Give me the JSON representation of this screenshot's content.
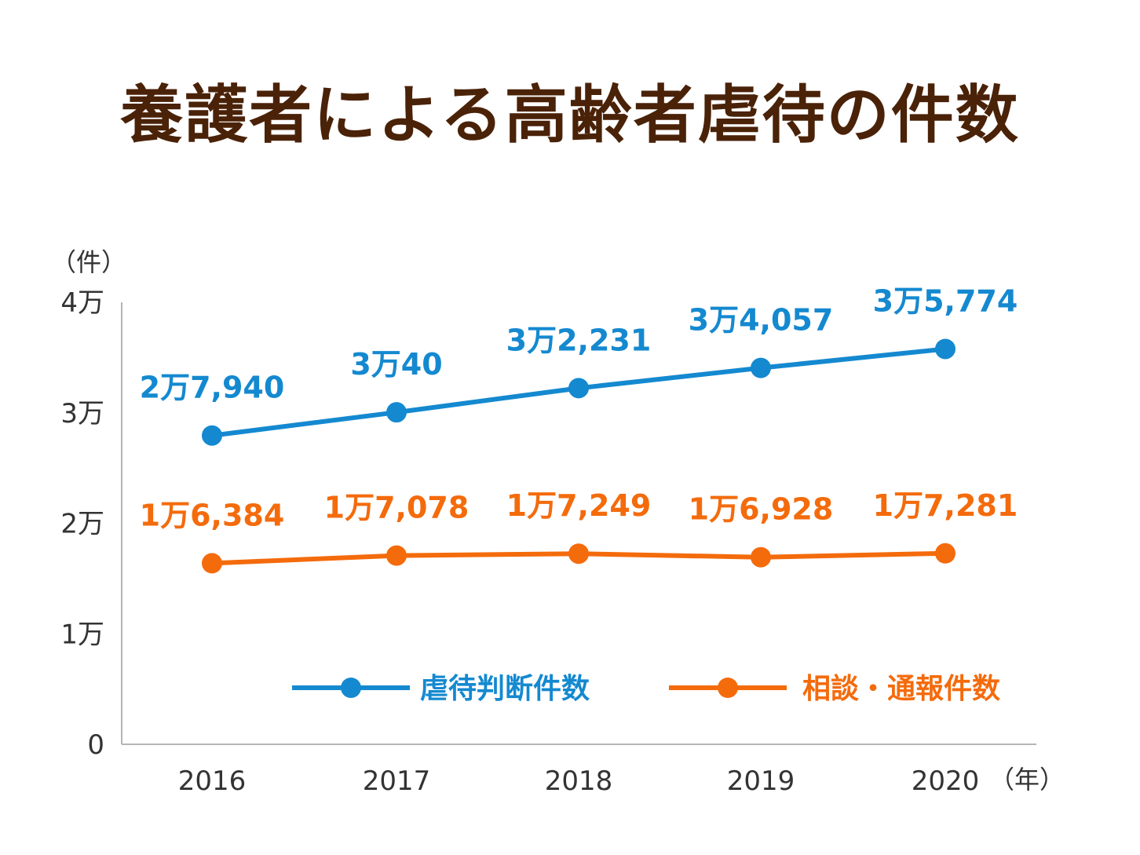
{
  "chart_data": {
    "type": "line",
    "title": "養護者による高齢者虐待の件数",
    "ylabel": "（件）",
    "xlabel": "（年）",
    "categories": [
      "2016",
      "2017",
      "2018",
      "2019",
      "2020"
    ],
    "ylim": [
      0,
      40000
    ],
    "yticks": [
      {
        "value": 0,
        "label": "0"
      },
      {
        "value": 10000,
        "label": "1万"
      },
      {
        "value": 20000,
        "label": "2万"
      },
      {
        "value": 30000,
        "label": "3万"
      },
      {
        "value": 40000,
        "label": "4万"
      }
    ],
    "grid": false,
    "legend_position": "bottom-right",
    "series": [
      {
        "name": "虐待判断件数",
        "color": "#1489d0",
        "values": [
          27940,
          30040,
          32231,
          34057,
          35774
        ],
        "labels": [
          "2万7,940",
          "3万40",
          "3万2,231",
          "3万4,057",
          "3万5,774"
        ]
      },
      {
        "name": "相談・通報件数",
        "color": "#f46b0c",
        "values": [
          16384,
          17078,
          17249,
          16928,
          17281
        ],
        "labels": [
          "1万6,384",
          "1万7,078",
          "1万7,249",
          "1万6,928",
          "1万7,281"
        ]
      }
    ]
  }
}
